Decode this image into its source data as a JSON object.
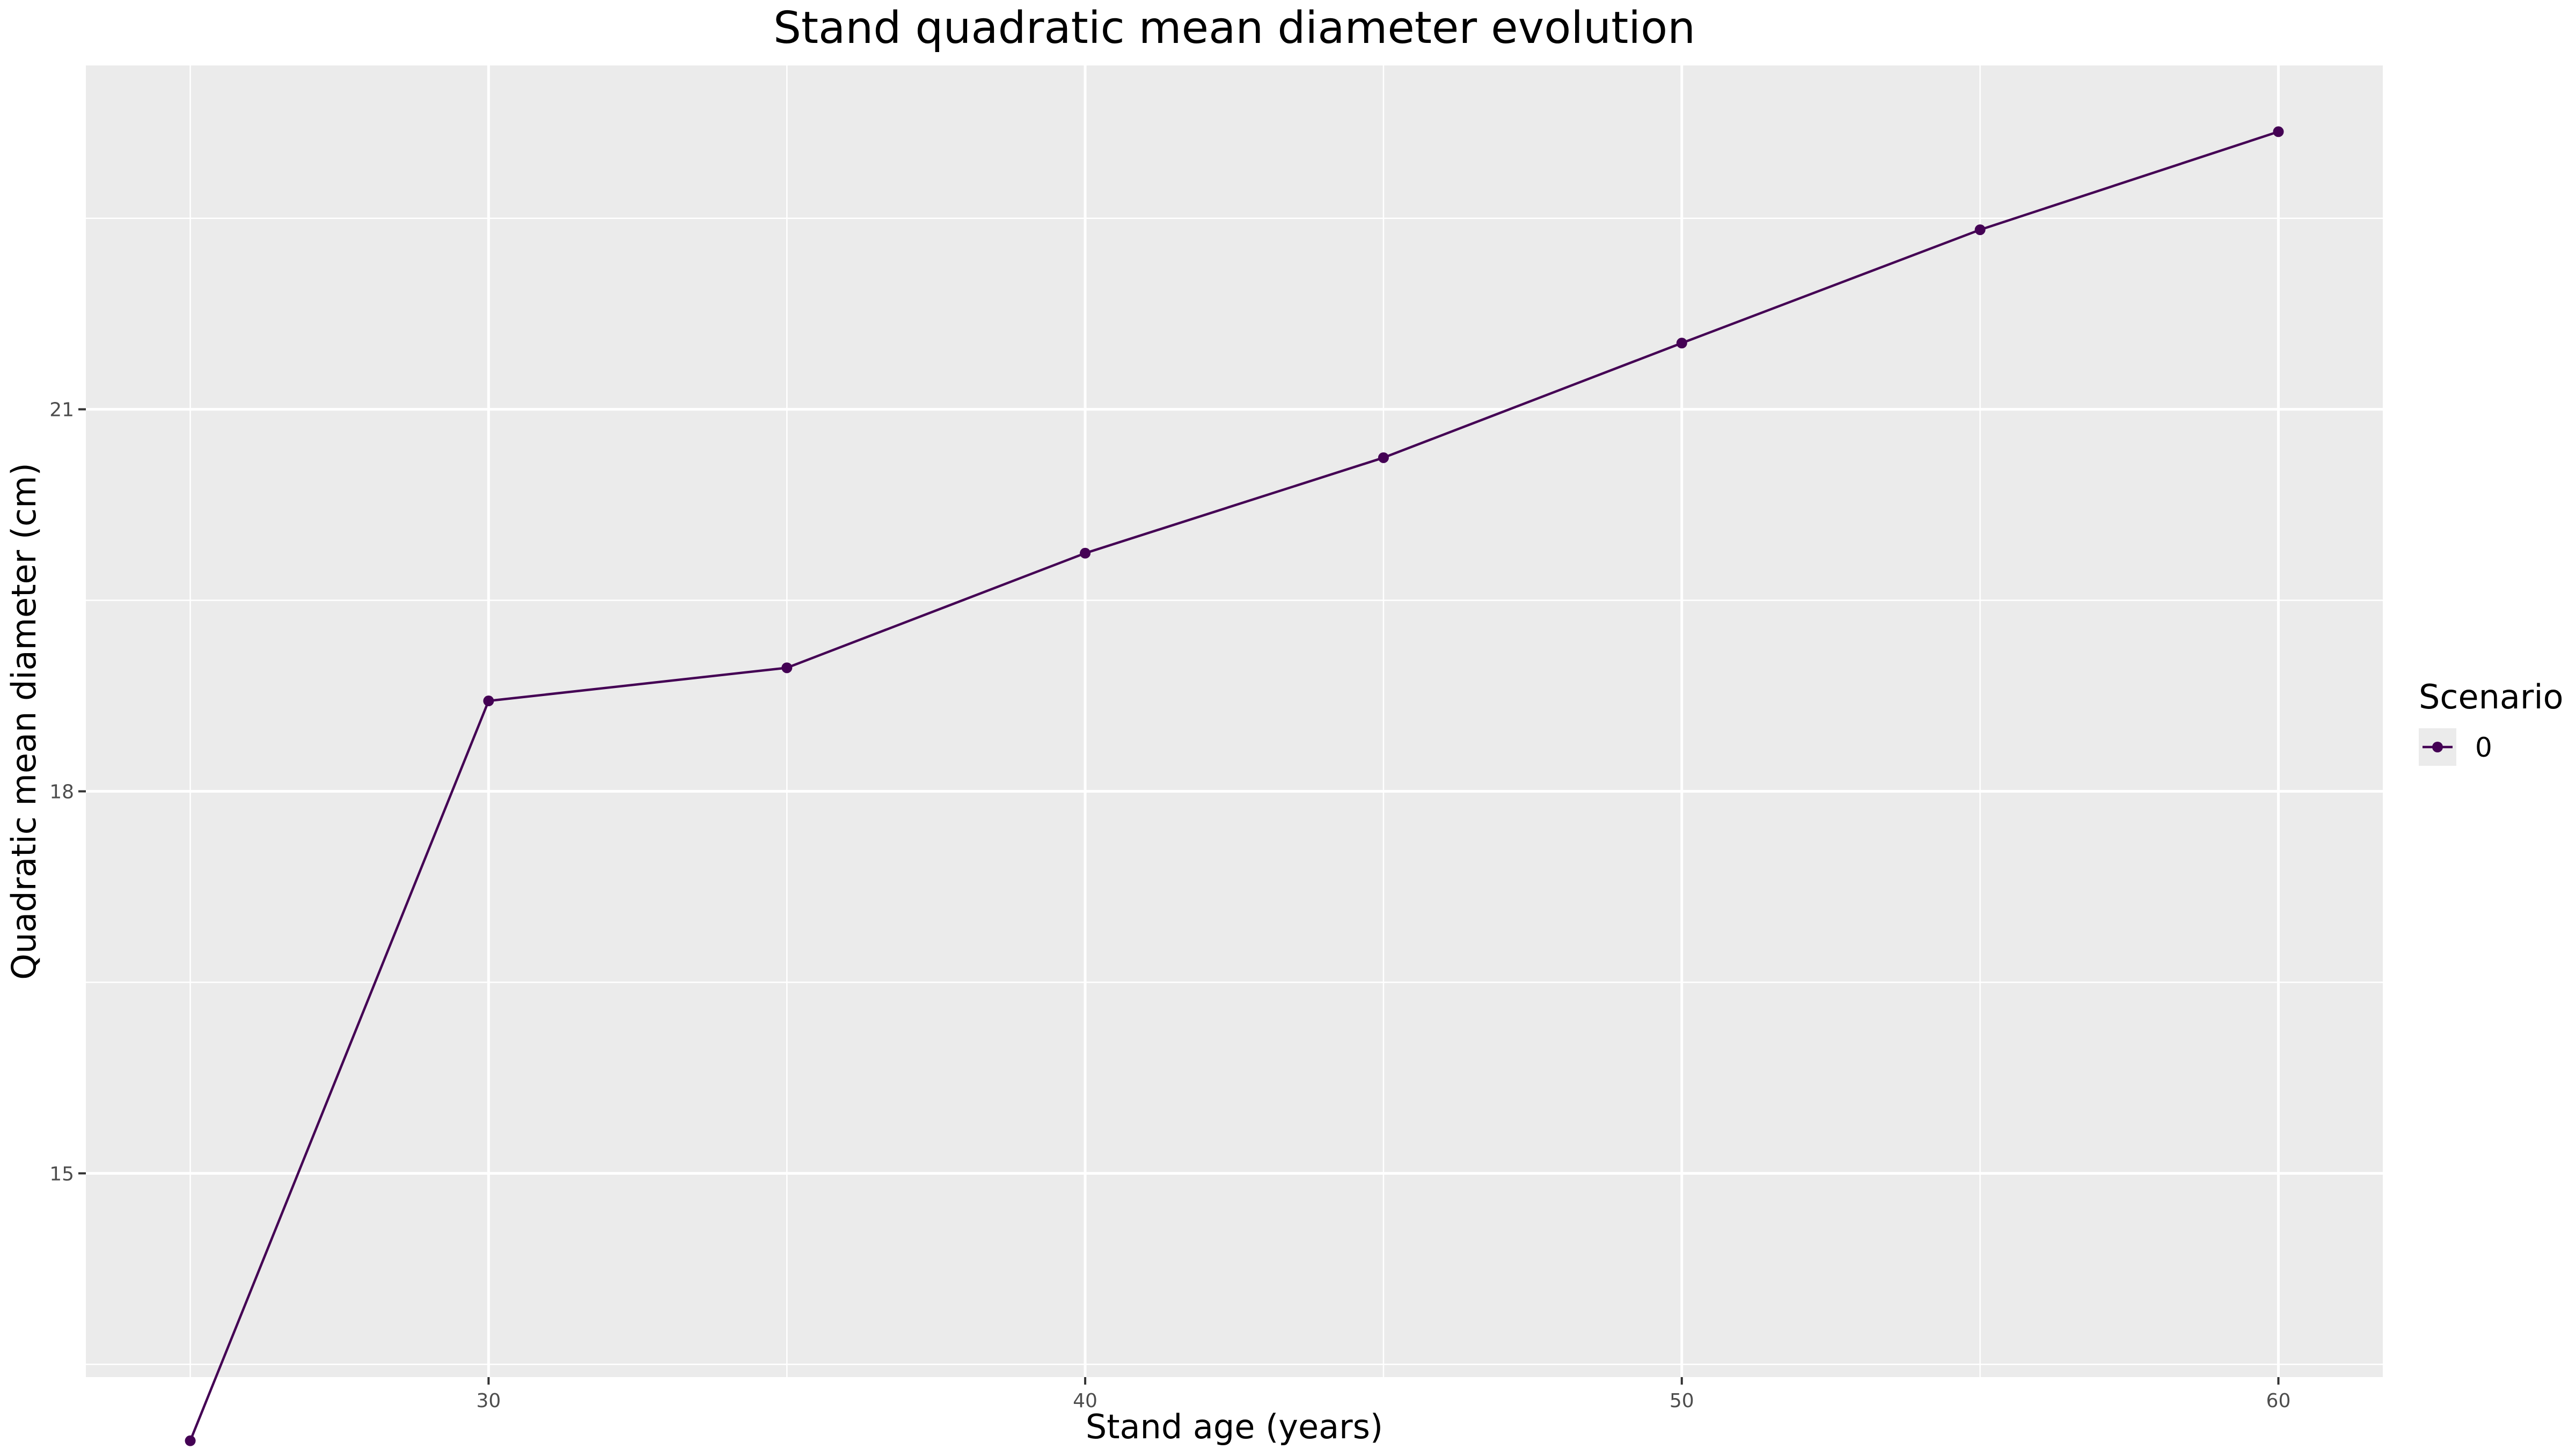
{
  "chart_data": {
    "type": "line",
    "title": "Stand quadratic mean diameter evolution",
    "xlabel": "Stand age (years)",
    "ylabel": "Quadratic mean diameter (cm)",
    "x": [
      25,
      30,
      35,
      40,
      45,
      50,
      55,
      60
    ],
    "series": [
      {
        "name": "0",
        "values": [
          12.9,
          18.71,
          18.97,
          19.87,
          20.62,
          21.52,
          22.41,
          23.18
        ],
        "color": "#440154"
      }
    ],
    "xlim": [
      23.25,
      61.75
    ],
    "ylim": [
      13.4,
      23.7
    ],
    "xticks": [
      30,
      40,
      50,
      60
    ],
    "yticks": [
      15,
      18,
      21
    ],
    "grid": true,
    "legend": {
      "title": "Scenario",
      "position": "right"
    },
    "colors": {
      "panel": "#ebebeb",
      "grid": "#ffffff"
    }
  }
}
